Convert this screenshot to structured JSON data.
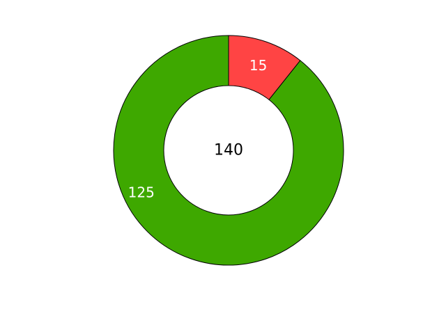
{
  "chart_data": {
    "type": "pie",
    "variant": "donut",
    "categories": [
      "",
      ""
    ],
    "values": [
      15,
      125
    ],
    "colors": [
      "#ff4444",
      "#3ea800"
    ],
    "slice_labels": [
      "15",
      "125"
    ],
    "center_label": "140",
    "start_angle": "top",
    "direction": "clockwise",
    "legend": "none"
  }
}
